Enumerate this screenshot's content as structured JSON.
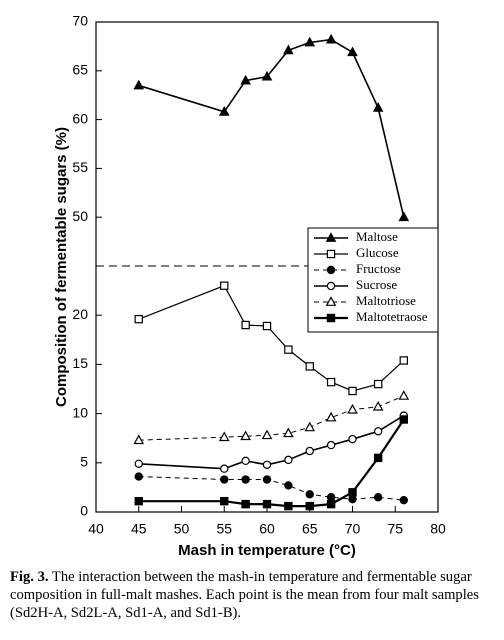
{
  "chart_data": [
    {
      "type": "line",
      "y_label": "Composition of fermentable sugars (%)",
      "x": [
        45,
        55,
        57.5,
        60,
        62.5,
        65,
        67.5,
        70,
        73,
        76
      ],
      "xlim": [
        40,
        80
      ],
      "ylim": [
        45,
        70
      ],
      "yticks": [
        50,
        55,
        60,
        65,
        70
      ],
      "series": [
        {
          "name": "Maltose",
          "color": "#000000",
          "marker": "triangle",
          "filled": true,
          "dashed": false,
          "line_width": 1.6,
          "values": [
            63.5,
            60.8,
            64.0,
            64.4,
            67.1,
            67.9,
            68.2,
            66.9,
            61.2,
            50.0
          ]
        }
      ]
    },
    {
      "type": "line",
      "x_label": "Mash in temperature (°C)",
      "x": [
        45,
        55,
        57.5,
        60,
        62.5,
        65,
        67.5,
        70,
        73,
        76
      ],
      "xlim": [
        40,
        80
      ],
      "xticks": [
        40,
        45,
        50,
        55,
        60,
        65,
        70,
        75,
        80
      ],
      "ylim": [
        0,
        25
      ],
      "yticks": [
        0,
        5,
        10,
        15,
        20
      ],
      "series": [
        {
          "name": "Glucose",
          "color": "#000000",
          "marker": "square",
          "filled": false,
          "dashed": false,
          "line_width": 1.2,
          "values": [
            19.6,
            23.0,
            19.0,
            18.9,
            16.5,
            14.8,
            13.2,
            12.3,
            13.0,
            15.4
          ]
        },
        {
          "name": "Fructose",
          "color": "#000000",
          "marker": "circle",
          "filled": true,
          "dashed": true,
          "line_width": 1,
          "values": [
            3.6,
            3.3,
            3.3,
            3.3,
            2.7,
            1.8,
            1.5,
            1.3,
            1.5,
            1.2
          ]
        },
        {
          "name": "Sucrose",
          "color": "#000000",
          "marker": "circle",
          "filled": false,
          "dashed": false,
          "line_width": 1.6,
          "values": [
            4.9,
            4.4,
            5.2,
            4.8,
            5.3,
            6.2,
            6.8,
            7.4,
            8.2,
            9.8
          ]
        },
        {
          "name": "Maltotriose",
          "color": "#000000",
          "marker": "triangle",
          "filled": false,
          "dashed": true,
          "line_width": 1,
          "values": [
            7.3,
            7.6,
            7.7,
            7.8,
            8.0,
            8.6,
            9.6,
            10.4,
            10.7,
            11.8
          ]
        },
        {
          "name": "Maltotetraose",
          "color": "#000000",
          "marker": "square",
          "filled": true,
          "dashed": false,
          "line_width": 2.2,
          "values": [
            1.1,
            1.1,
            0.8,
            0.8,
            0.6,
            0.6,
            0.8,
            2.0,
            5.5,
            9.4
          ]
        }
      ]
    }
  ],
  "caption": {
    "label": "Fig. 3.",
    "text": "The interaction between the mash-in temperature and fermentable sugar composition in full-malt mashes. Each point is the mean from four malt samples (Sd2H-A, Sd2L-A, Sd1-A, and Sd1-B)."
  }
}
